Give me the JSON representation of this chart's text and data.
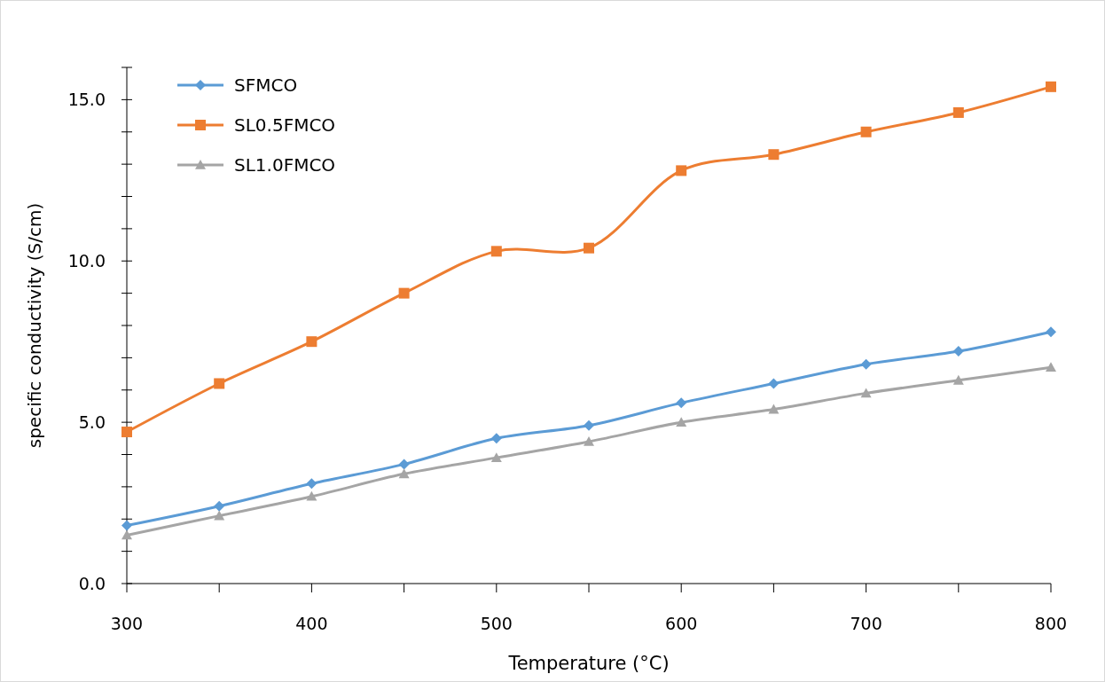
{
  "chart_data": {
    "type": "line",
    "xlabel": "Temperature (°C)",
    "ylabel": "specific conductivity (S/cm)",
    "x": [
      300,
      350,
      400,
      450,
      500,
      550,
      600,
      650,
      700,
      750,
      800
    ],
    "series": [
      {
        "name": "SFMCO",
        "color": "#5b9bd5",
        "marker": "diamond",
        "values": [
          1.8,
          2.4,
          3.1,
          3.7,
          4.5,
          4.9,
          5.6,
          6.2,
          6.8,
          7.2,
          7.8
        ]
      },
      {
        "name": "SL0.5FMCO",
        "color": "#ed7d31",
        "marker": "square",
        "values": [
          4.7,
          6.2,
          7.5,
          9.0,
          10.3,
          10.4,
          12.8,
          13.3,
          14.0,
          14.6,
          15.4
        ]
      },
      {
        "name": "SL1.0FMCO",
        "color": "#a5a5a5",
        "marker": "triangle",
        "values": [
          1.5,
          2.1,
          2.7,
          3.4,
          3.9,
          4.4,
          5.0,
          5.4,
          5.9,
          6.3,
          6.7
        ]
      }
    ],
    "xlim": [
      300,
      800
    ],
    "xticks": [
      300,
      {
        "value": 350,
        "label": null
      },
      400,
      {
        "value": 450,
        "label": null
      },
      500,
      {
        "value": 550,
        "label": null
      },
      600,
      {
        "value": 650,
        "label": null
      },
      700,
      {
        "value": 750,
        "label": null
      },
      800
    ],
    "ylim": [
      0,
      16
    ],
    "yticks": [
      {
        "value": 0,
        "label": "0.0"
      },
      {
        "value": 1,
        "label": null
      },
      {
        "value": 2,
        "label": null
      },
      {
        "value": 3,
        "label": null
      },
      {
        "value": 4,
        "label": null
      },
      {
        "value": 5,
        "label": "5.0"
      },
      {
        "value": 6,
        "label": null
      },
      {
        "value": 7,
        "label": null
      },
      {
        "value": 8,
        "label": null
      },
      {
        "value": 9,
        "label": null
      },
      {
        "value": 10,
        "label": "10.0"
      },
      {
        "value": 11,
        "label": null
      },
      {
        "value": 12,
        "label": null
      },
      {
        "value": 13,
        "label": null
      },
      {
        "value": 14,
        "label": null
      },
      {
        "value": 15,
        "label": "15.0"
      },
      {
        "value": 16,
        "label": null
      }
    ],
    "grid": false,
    "legend": "top left"
  }
}
